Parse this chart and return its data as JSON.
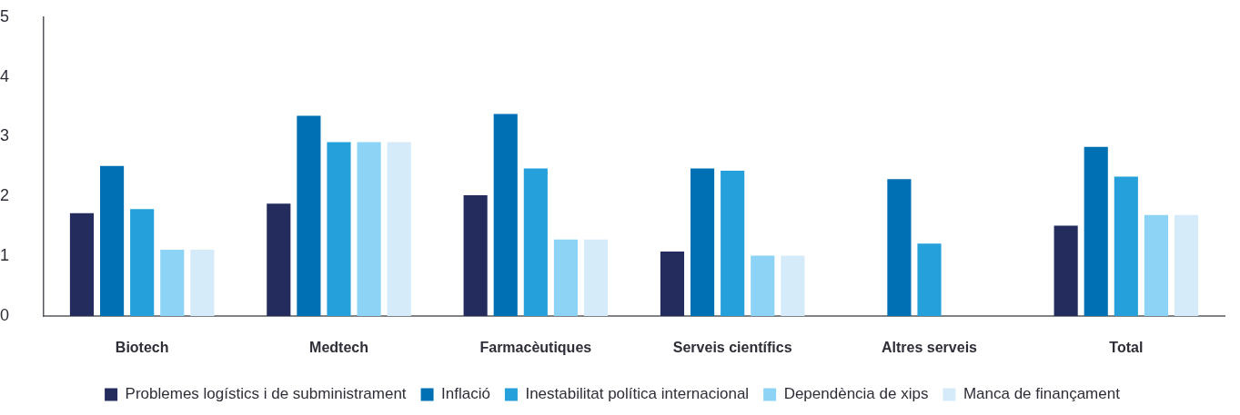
{
  "chart_data": {
    "type": "bar",
    "categories": [
      "Biotech",
      "Medtech",
      "Farmacèutiques",
      "Serveis científics",
      "Altres serveis",
      "Total"
    ],
    "series": [
      {
        "name": "Problemes logístics i de subministrament",
        "color": "#242c5e",
        "values": [
          1.72,
          1.88,
          2.02,
          1.08,
          null,
          1.51
        ]
      },
      {
        "name": "Inflació",
        "color": "#0070b4",
        "values": [
          2.51,
          3.35,
          3.38,
          2.47,
          2.29,
          2.83
        ]
      },
      {
        "name": "Inestabilitat política internacional",
        "color": "#25a0db",
        "values": [
          1.79,
          2.91,
          2.47,
          2.43,
          1.21,
          2.33
        ]
      },
      {
        "name": "Dependència de xips",
        "color": "#8cd3f5",
        "values": [
          1.11,
          2.91,
          1.28,
          1.01,
          null,
          1.69
        ]
      },
      {
        "name": "Manca de finançament",
        "color": "#d5ebf9",
        "values": [
          1.11,
          2.91,
          1.28,
          1.01,
          null,
          1.69
        ]
      }
    ],
    "ylim": [
      0,
      5
    ],
    "yticks": [
      0,
      1,
      2,
      3,
      4,
      5
    ],
    "legend": "bottom"
  }
}
